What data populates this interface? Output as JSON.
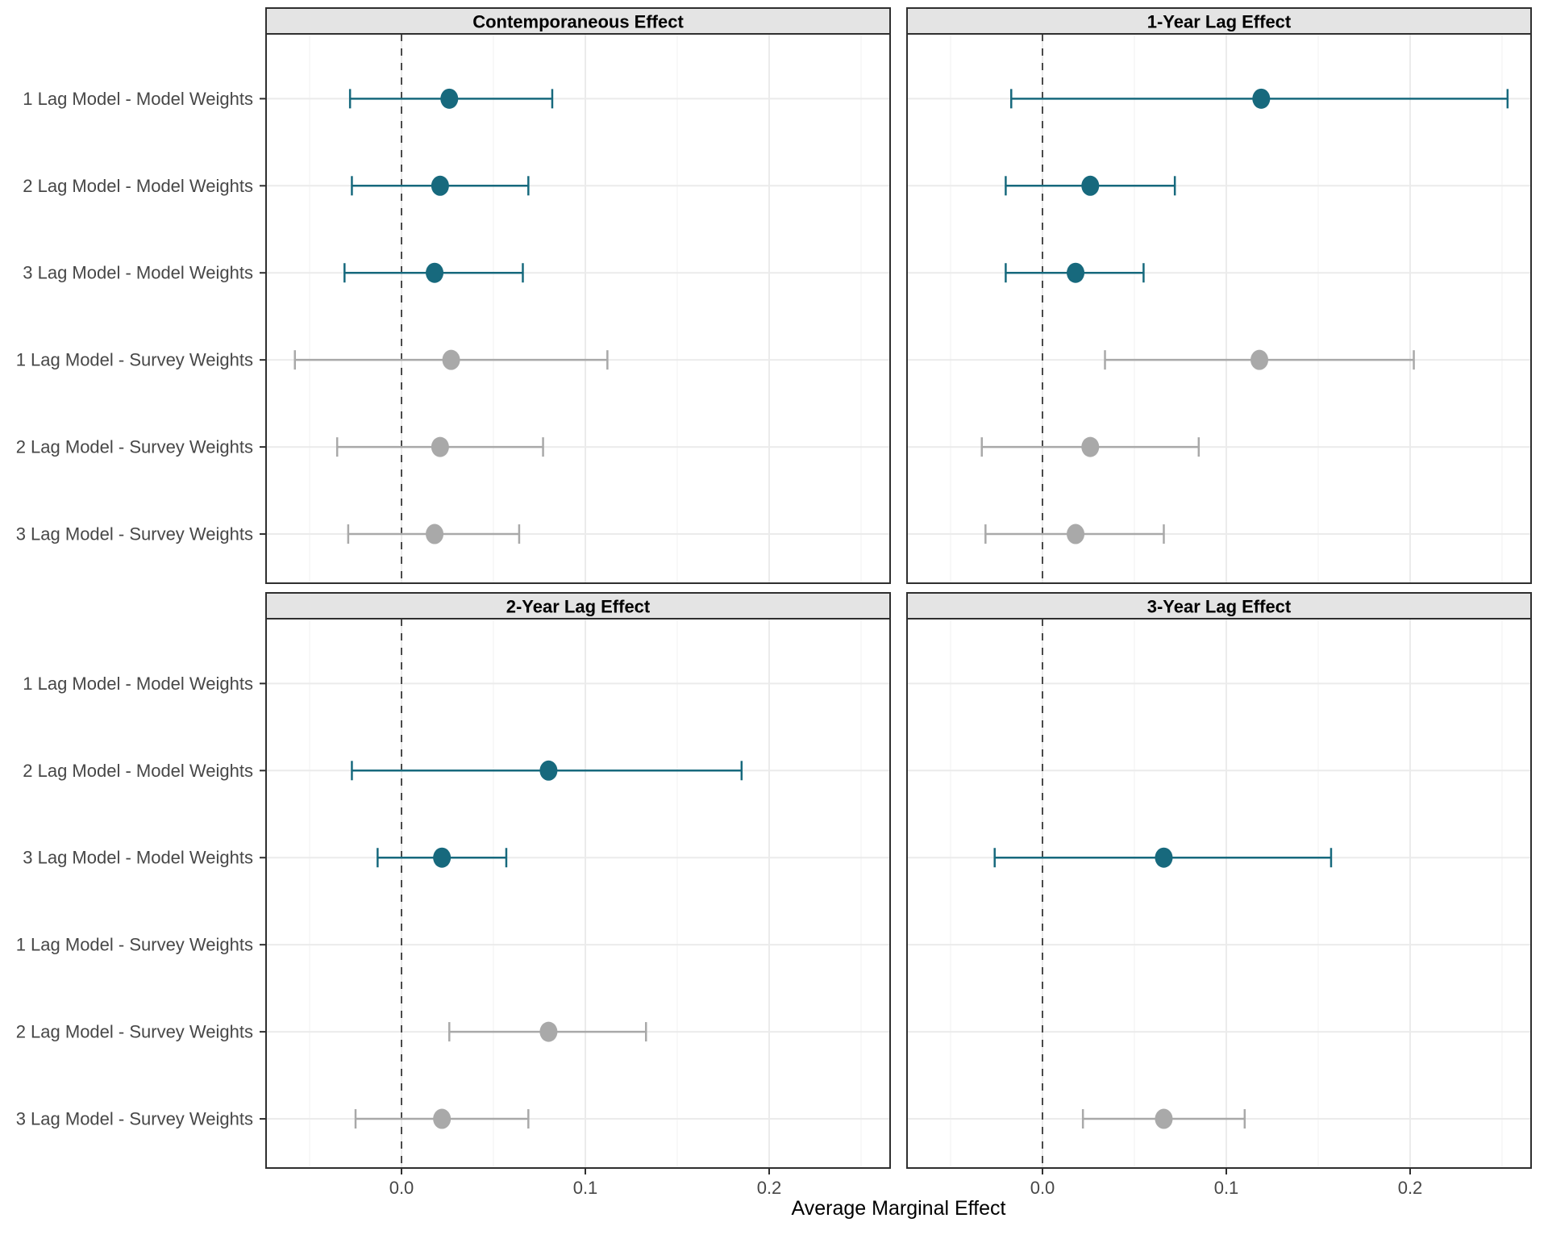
{
  "chart_data": {
    "type": "scatter",
    "subtype": "faceted-forest-pointrange",
    "title": "",
    "xlabel": "Average Marginal Effect",
    "ylabel": "",
    "x_ticks": [
      0.0,
      0.1,
      0.2
    ],
    "x_tick_labels": [
      "0.0",
      "0.1",
      "0.2"
    ],
    "x_minor_gridlines": [
      -0.05,
      0.05,
      0.15,
      0.25
    ],
    "xlim": [
      -0.074,
      0.266
    ],
    "zero_reference_line": 0.0,
    "grid": true,
    "legend": "none",
    "categories": [
      "1 Lag Model - Model Weights",
      "2 Lag Model - Model Weights",
      "3 Lag Model - Model Weights",
      "1 Lag Model - Survey Weights",
      "2 Lag Model - Survey Weights",
      "3 Lag Model - Survey Weights"
    ],
    "groups": {
      "model_weights": {
        "color": "#17697D"
      },
      "survey_weights": {
        "color": "#A9A9A9"
      }
    },
    "style_colors": {
      "strip_background": "#E4E4E4",
      "panel_border": "#2F2F2F",
      "major_gridline": "#EBEBEB",
      "minor_gridline": "#F4F4F4",
      "zero_line": "#4A4A4A",
      "axis_text": "#474747",
      "axis_title": "#000000"
    },
    "facets": [
      {
        "label": "Contemporaneous Effect",
        "points": [
          {
            "category": "1 Lag Model - Model Weights",
            "group": "model_weights",
            "estimate": 0.026,
            "ci_low": -0.028,
            "ci_high": 0.082
          },
          {
            "category": "2 Lag Model - Model Weights",
            "group": "model_weights",
            "estimate": 0.021,
            "ci_low": -0.027,
            "ci_high": 0.069
          },
          {
            "category": "3 Lag Model - Model Weights",
            "group": "model_weights",
            "estimate": 0.018,
            "ci_low": -0.031,
            "ci_high": 0.066
          },
          {
            "category": "1 Lag Model - Survey Weights",
            "group": "survey_weights",
            "estimate": 0.027,
            "ci_low": -0.058,
            "ci_high": 0.112
          },
          {
            "category": "2 Lag Model - Survey Weights",
            "group": "survey_weights",
            "estimate": 0.021,
            "ci_low": -0.035,
            "ci_high": 0.077
          },
          {
            "category": "3 Lag Model - Survey Weights",
            "group": "survey_weights",
            "estimate": 0.018,
            "ci_low": -0.029,
            "ci_high": 0.064
          }
        ]
      },
      {
        "label": "1-Year Lag Effect",
        "points": [
          {
            "category": "1 Lag Model - Model Weights",
            "group": "model_weights",
            "estimate": 0.119,
            "ci_low": -0.017,
            "ci_high": 0.253
          },
          {
            "category": "2 Lag Model - Model Weights",
            "group": "model_weights",
            "estimate": 0.026,
            "ci_low": -0.02,
            "ci_high": 0.072
          },
          {
            "category": "3 Lag Model - Model Weights",
            "group": "model_weights",
            "estimate": 0.018,
            "ci_low": -0.02,
            "ci_high": 0.055
          },
          {
            "category": "1 Lag Model - Survey Weights",
            "group": "survey_weights",
            "estimate": 0.118,
            "ci_low": 0.034,
            "ci_high": 0.202
          },
          {
            "category": "2 Lag Model - Survey Weights",
            "group": "survey_weights",
            "estimate": 0.026,
            "ci_low": -0.033,
            "ci_high": 0.085
          },
          {
            "category": "3 Lag Model - Survey Weights",
            "group": "survey_weights",
            "estimate": 0.018,
            "ci_low": -0.031,
            "ci_high": 0.066
          }
        ]
      },
      {
        "label": "2-Year Lag Effect",
        "points": [
          {
            "category": "2 Lag Model - Model Weights",
            "group": "model_weights",
            "estimate": 0.08,
            "ci_low": -0.027,
            "ci_high": 0.185
          },
          {
            "category": "3 Lag Model - Model Weights",
            "group": "model_weights",
            "estimate": 0.022,
            "ci_low": -0.013,
            "ci_high": 0.057
          },
          {
            "category": "2 Lag Model - Survey Weights",
            "group": "survey_weights",
            "estimate": 0.08,
            "ci_low": 0.026,
            "ci_high": 0.133
          },
          {
            "category": "3 Lag Model - Survey Weights",
            "group": "survey_weights",
            "estimate": 0.022,
            "ci_low": -0.025,
            "ci_high": 0.069
          }
        ]
      },
      {
        "label": "3-Year Lag Effect",
        "points": [
          {
            "category": "3 Lag Model - Model Weights",
            "group": "model_weights",
            "estimate": 0.066,
            "ci_low": -0.026,
            "ci_high": 0.157
          },
          {
            "category": "3 Lag Model - Survey Weights",
            "group": "survey_weights",
            "estimate": 0.066,
            "ci_low": 0.022,
            "ci_high": 0.11
          }
        ]
      }
    ]
  }
}
